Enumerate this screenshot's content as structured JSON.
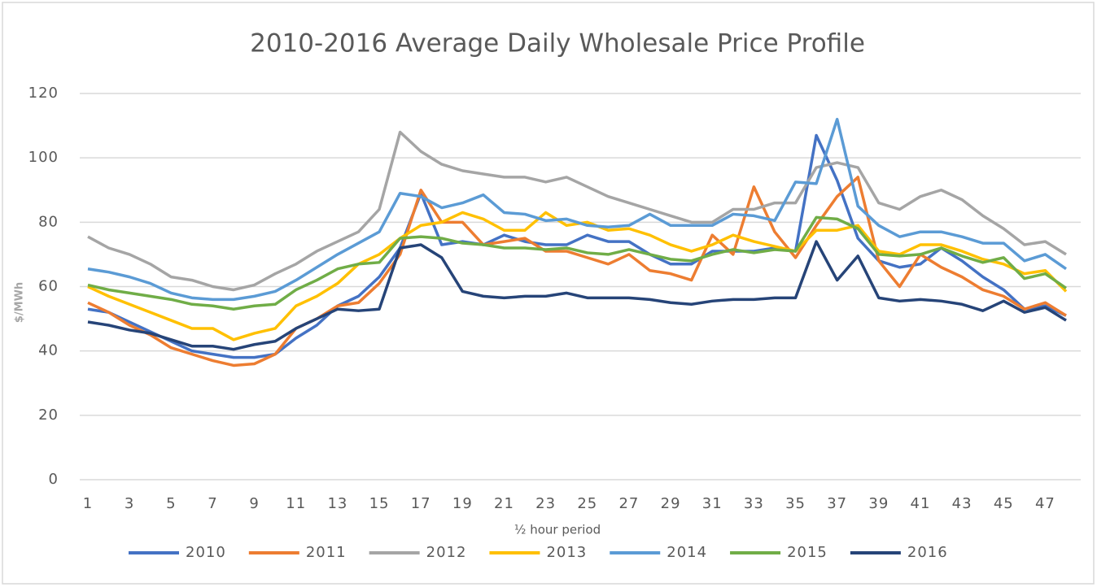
{
  "chart_data": {
    "type": "line",
    "title": "2010-2016  Average Daily  Wholesale  Price Profile",
    "x_label": "½ hour period",
    "y_label": "$/MWh",
    "x": [
      1,
      2,
      3,
      4,
      5,
      6,
      7,
      8,
      9,
      10,
      11,
      12,
      13,
      14,
      15,
      16,
      17,
      18,
      19,
      20,
      21,
      22,
      23,
      24,
      25,
      26,
      27,
      28,
      29,
      30,
      31,
      32,
      33,
      34,
      35,
      36,
      37,
      38,
      39,
      40,
      41,
      42,
      43,
      44,
      45,
      46,
      47,
      48
    ],
    "xlim": [
      1,
      48
    ],
    "xticks": [
      1,
      3,
      5,
      7,
      9,
      11,
      13,
      15,
      17,
      19,
      21,
      23,
      25,
      27,
      29,
      31,
      33,
      35,
      37,
      39,
      41,
      43,
      45,
      47
    ],
    "ylim": [
      0,
      120
    ],
    "yticks": [
      0,
      20,
      40,
      60,
      80,
      100,
      120
    ],
    "grid": true,
    "legend": "bottom",
    "series": [
      {
        "name": "2010",
        "color": "#4472c4",
        "values": [
          53,
          52,
          49,
          46,
          43,
          40,
          39,
          38,
          38,
          39,
          44,
          48,
          54,
          57,
          63,
          72,
          89,
          73,
          74,
          73,
          76,
          74,
          73,
          73,
          76,
          74,
          74,
          70,
          67,
          67,
          71,
          71,
          71,
          72,
          71,
          107,
          93,
          75,
          68,
          66,
          67,
          72,
          68,
          63,
          59,
          53,
          54,
          51
        ]
      },
      {
        "name": "2011",
        "color": "#ed7d31",
        "values": [
          55,
          52,
          48,
          45,
          41,
          39,
          37,
          35.5,
          36,
          39,
          47,
          50,
          54,
          55,
          61,
          70,
          90,
          80,
          80,
          73,
          74,
          75,
          71,
          71,
          69,
          67,
          70,
          65,
          64,
          62,
          76,
          70,
          91,
          77,
          69,
          79,
          88,
          94,
          68,
          60,
          70,
          66,
          63,
          59,
          57,
          53,
          55,
          51
        ]
      },
      {
        "name": "2012",
        "color": "#a5a5a5",
        "values": [
          75.5,
          72,
          70,
          67,
          63,
          62,
          60,
          59,
          60.5,
          64,
          67,
          71,
          74,
          77,
          84,
          108,
          102,
          98,
          96,
          95,
          94,
          94,
          92.5,
          94,
          91,
          88,
          86,
          84,
          82,
          80,
          80,
          84,
          84,
          86,
          86,
          97,
          98.5,
          97,
          86,
          84,
          88,
          90,
          87,
          82,
          78,
          73,
          74,
          70
        ]
      },
      {
        "name": "2013",
        "color": "#ffc000",
        "values": [
          60,
          57,
          54.5,
          52,
          49.5,
          47,
          47,
          43.5,
          45.5,
          47,
          54,
          57,
          61,
          67,
          70,
          75,
          79,
          80,
          83,
          81,
          77.5,
          77.5,
          83,
          79,
          80,
          77.5,
          78,
          76,
          73,
          71,
          73,
          76,
          74,
          72.5,
          71,
          77.5,
          77.5,
          79,
          71,
          70,
          73,
          73,
          71,
          68.5,
          67,
          64,
          65,
          58.5
        ]
      },
      {
        "name": "2014",
        "color": "#5b9bd5",
        "values": [
          65.5,
          64.5,
          63,
          61,
          58,
          56.5,
          56,
          56,
          57,
          58.5,
          62,
          66,
          70,
          73.5,
          77,
          89,
          88,
          84.5,
          86,
          88.5,
          83,
          82.5,
          80.5,
          81,
          79,
          78.5,
          79,
          82.5,
          79,
          79,
          79,
          82.5,
          82,
          80.5,
          92.5,
          92,
          112,
          85,
          79,
          75.5,
          77,
          77,
          75.5,
          73.5,
          73.5,
          68,
          70,
          65.5
        ]
      },
      {
        "name": "2015",
        "color": "#70ad47",
        "values": [
          60.5,
          59,
          58,
          57,
          56,
          54.5,
          54,
          53,
          54,
          54.5,
          59,
          62,
          65.5,
          67,
          67.5,
          75,
          75.5,
          75,
          73.5,
          73,
          72,
          72,
          71.5,
          72,
          70.5,
          70,
          71.5,
          70,
          68.5,
          68,
          70,
          71.5,
          70.5,
          71.5,
          71,
          81.5,
          81,
          78,
          70,
          69.5,
          70,
          72,
          69.5,
          67.5,
          69,
          62.5,
          64,
          59.5
        ]
      },
      {
        "name": "2016",
        "color": "#264478",
        "values": [
          49,
          48,
          46.5,
          45.5,
          43.5,
          41.5,
          41.5,
          40.5,
          42,
          43,
          47,
          50,
          53,
          52.5,
          53,
          72,
          73,
          69,
          58.5,
          57,
          56.5,
          57,
          57,
          58,
          56.5,
          56.5,
          56.5,
          56,
          55,
          54.5,
          55.5,
          56,
          56,
          56.5,
          56.5,
          74,
          62,
          69.5,
          56.5,
          55.5,
          56,
          55.5,
          54.5,
          52.5,
          55.5,
          52,
          53.5,
          49.5
        ]
      }
    ]
  }
}
